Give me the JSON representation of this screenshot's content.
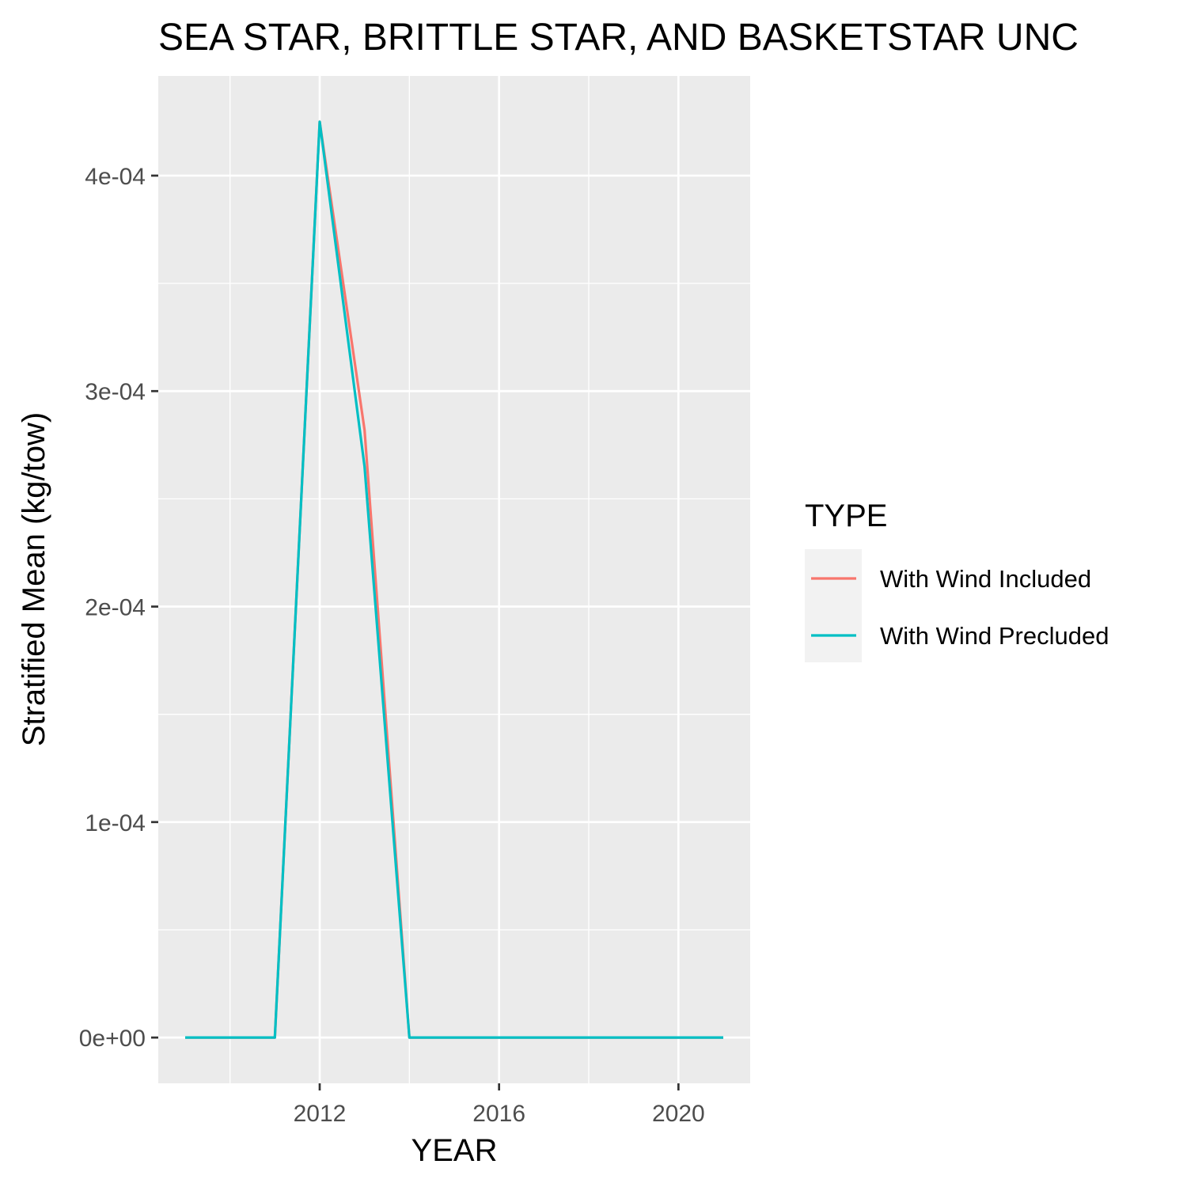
{
  "chart_data": {
    "type": "line",
    "title": "SEA STAR, BRITTLE STAR, AND BASKETSTAR UNC",
    "xlabel": "YEAR",
    "ylabel": "Stratified Mean (kg/tow)",
    "x": [
      2009,
      2010,
      2011,
      2012,
      2013,
      2014,
      2015,
      2016,
      2017,
      2018,
      2019,
      2020,
      2021
    ],
    "series": [
      {
        "name": "With Wind Included",
        "color": "#F8766D",
        "values": [
          0,
          0,
          0,
          0.000425,
          0.000282,
          0,
          0,
          0,
          0,
          0,
          0,
          0,
          0
        ]
      },
      {
        "name": "With Wind Precluded",
        "color": "#00BFC4",
        "values": [
          0,
          0,
          0,
          0.000425,
          0.000265,
          0,
          0,
          0,
          0,
          0,
          0,
          0,
          0
        ]
      }
    ],
    "xlim": [
      2008.4,
      2021.6
    ],
    "ylim": [
      -2.125e-05,
      0.00044625
    ],
    "x_ticks": [
      2012,
      2016,
      2020
    ],
    "x_tick_labels": [
      "2012",
      "2016",
      "2020"
    ],
    "x_minor_ticks": [
      2010,
      2014,
      2018
    ],
    "y_ticks": [
      0,
      0.0001,
      0.0002,
      0.0003,
      0.0004
    ],
    "y_tick_labels": [
      "0e+00",
      "1e-04",
      "2e-04",
      "3e-04",
      "4e-04"
    ],
    "y_minor_ticks": [
      5e-05,
      0.00015,
      0.00025,
      0.00035
    ],
    "grid": true,
    "panel_background": "#EBEBEB",
    "grid_color": "#FFFFFF",
    "legend": {
      "title": "TYPE",
      "position": "right",
      "background": "#F2F2F2"
    }
  }
}
